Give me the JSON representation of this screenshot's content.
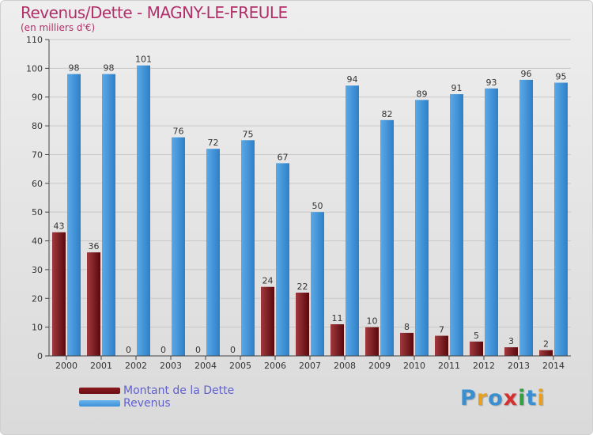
{
  "header": {
    "title": "Revenus/Dette - MAGNY-LE-FREULE",
    "subtitle": "(en milliers d'€)"
  },
  "legend": {
    "debt_label": "Montant de la Dette",
    "revenue_label": "Revenus"
  },
  "logo": {
    "text": "Proxiti"
  },
  "colors": {
    "debt": "#6b0d12",
    "revenue": "#3d90d8",
    "logo": [
      "#3a8fd0",
      "#e8a020",
      "#3a8fd0",
      "#d33030",
      "#30a040",
      "#3a8fd0",
      "#e8a020"
    ]
  },
  "chart_data": {
    "type": "bar",
    "title": "Revenus/Dette - MAGNY-LE-FREULE",
    "subtitle": "(en milliers d'€)",
    "categories": [
      "2000",
      "2001",
      "2002",
      "2003",
      "2004",
      "2005",
      "2006",
      "2007",
      "2008",
      "2009",
      "2010",
      "2011",
      "2012",
      "2013",
      "2014"
    ],
    "series": [
      {
        "name": "Montant de la Dette",
        "values": [
          43,
          36,
          0,
          0,
          0,
          0,
          24,
          22,
          11,
          10,
          8,
          7,
          5,
          3,
          2
        ]
      },
      {
        "name": "Revenus",
        "values": [
          98,
          98,
          101,
          76,
          72,
          75,
          67,
          50,
          94,
          82,
          89,
          91,
          93,
          96,
          95
        ]
      }
    ],
    "yticks": [
      0,
      10,
      20,
      30,
      40,
      50,
      60,
      70,
      80,
      90,
      100,
      110
    ],
    "ylim": [
      0,
      110
    ],
    "grid": true,
    "legend_position": "bottom-left"
  }
}
